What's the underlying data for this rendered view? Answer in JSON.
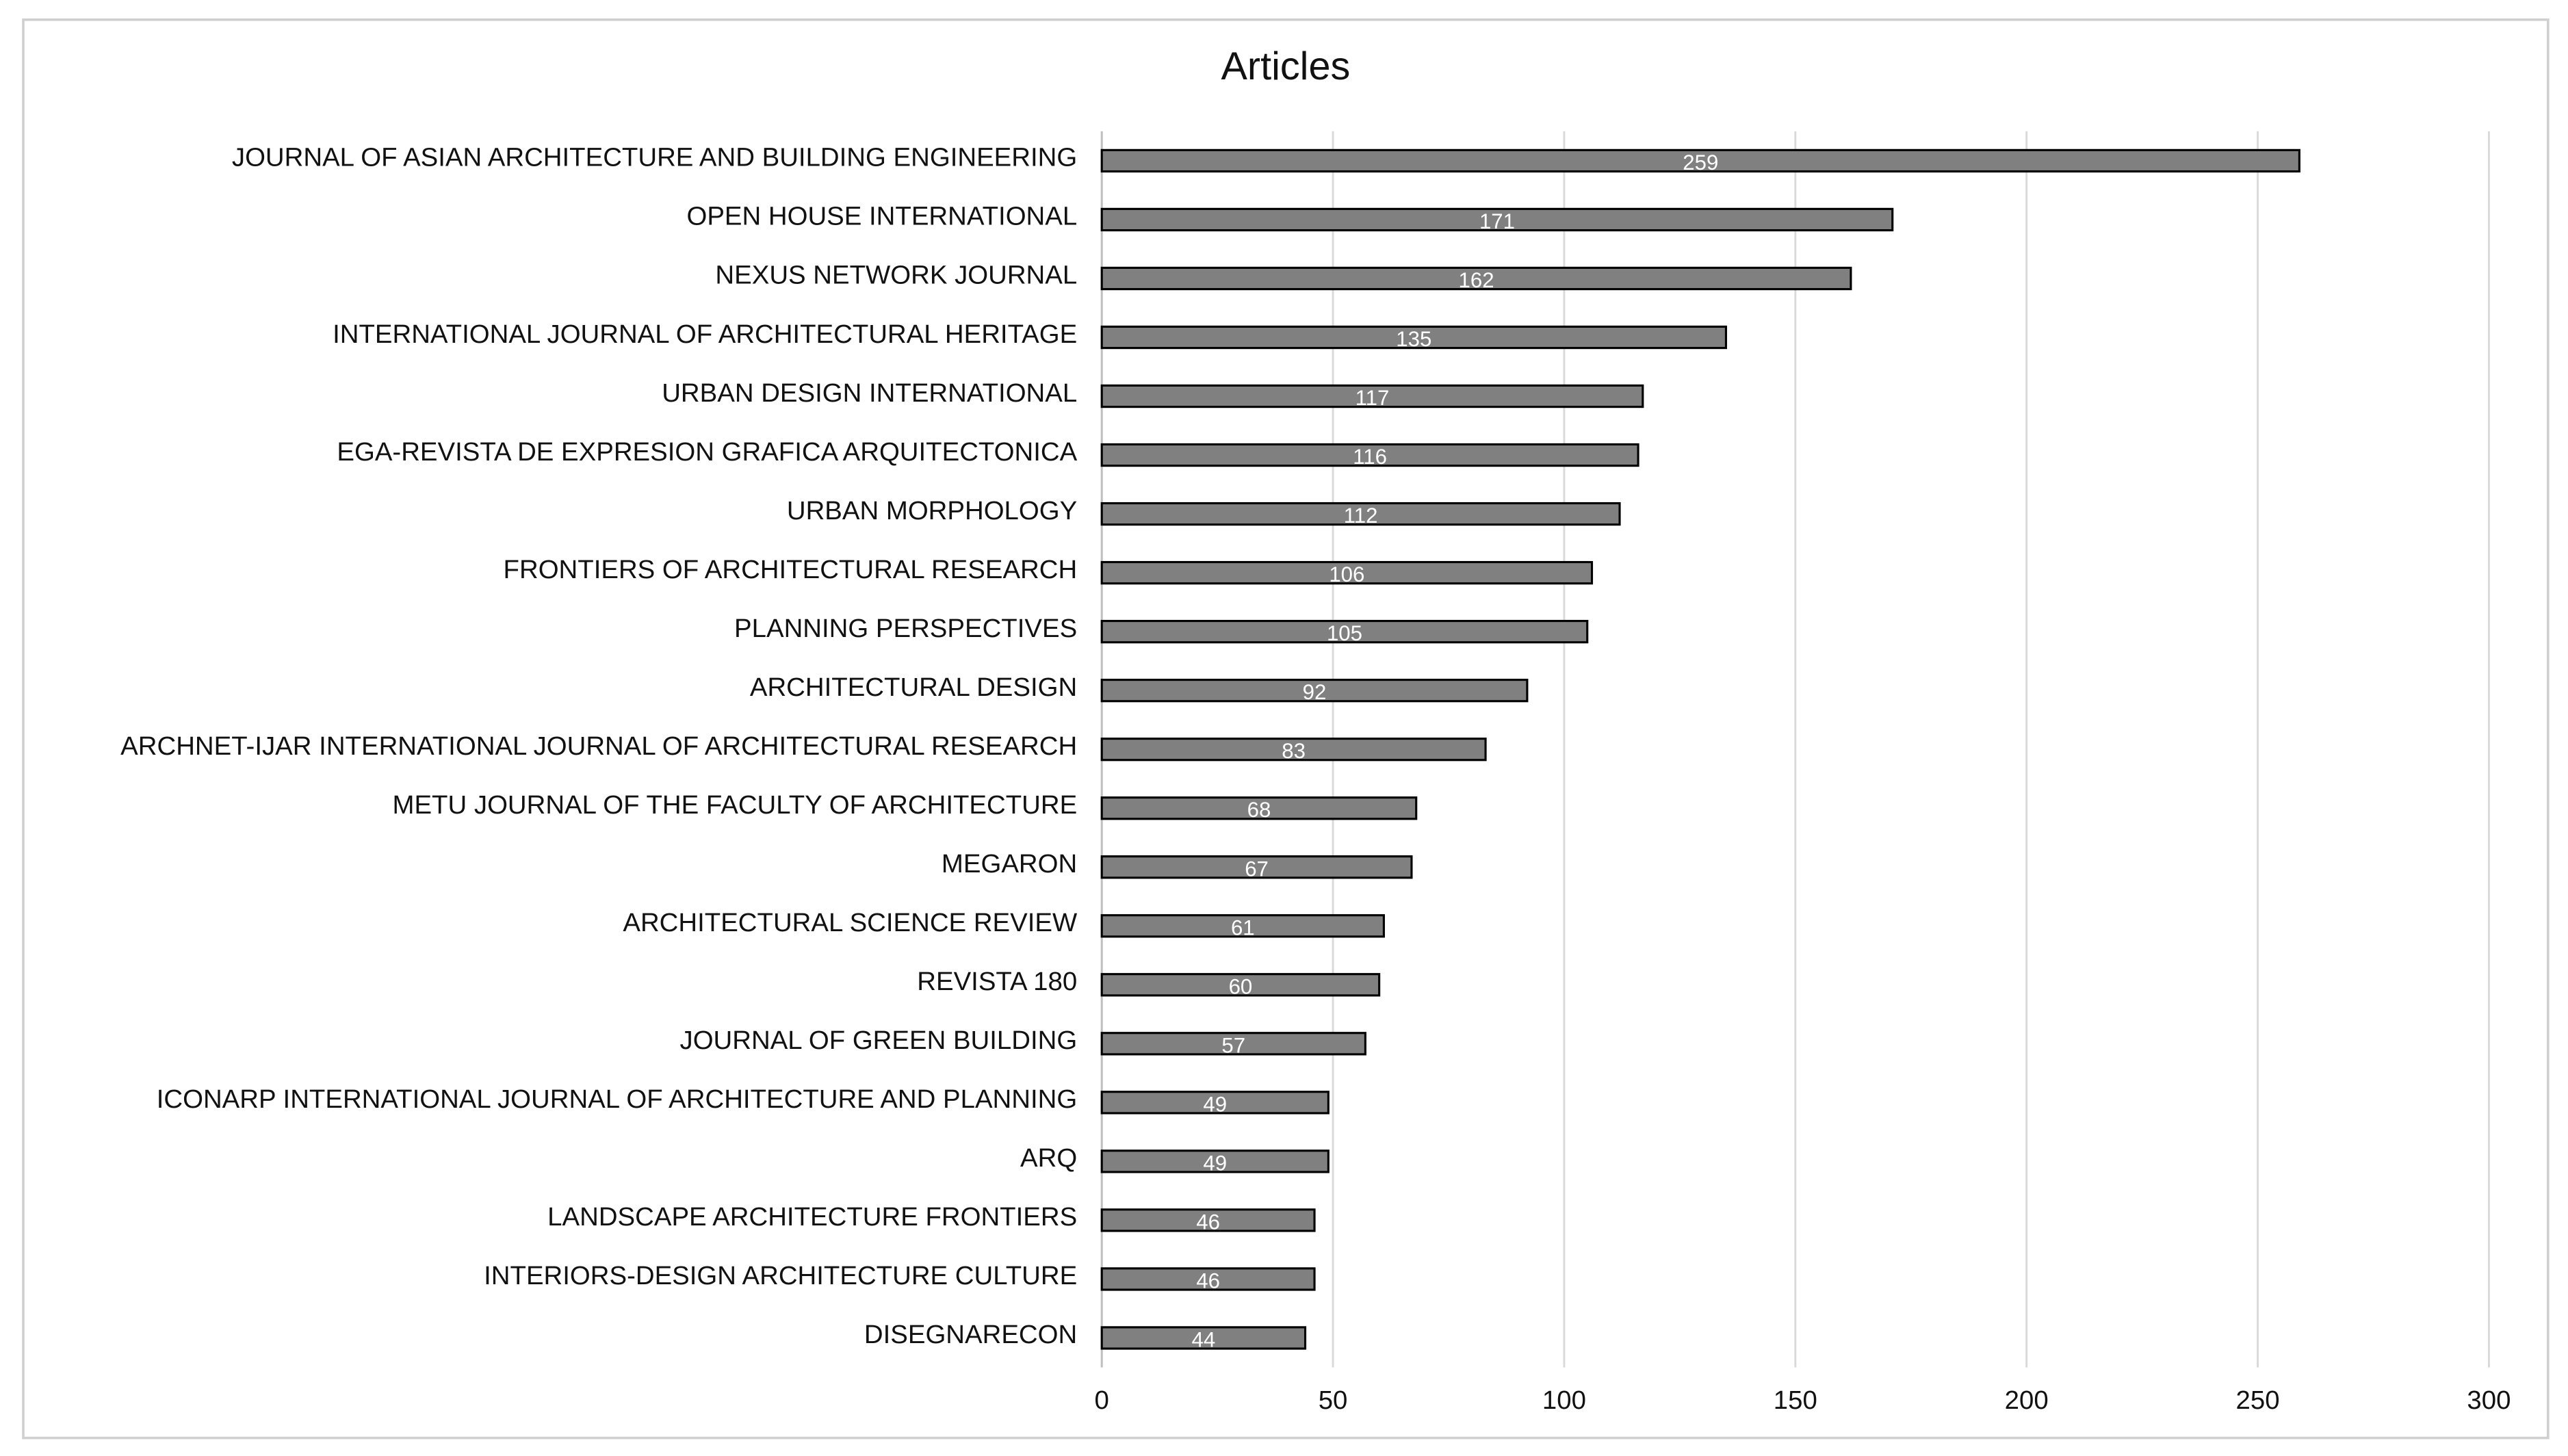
{
  "chart_data": {
    "type": "bar",
    "orientation": "horizontal",
    "title": "Articles",
    "categories": [
      "JOURNAL OF ASIAN ARCHITECTURE AND BUILDING ENGINEERING",
      "OPEN HOUSE INTERNATIONAL",
      "NEXUS NETWORK JOURNAL",
      "INTERNATIONAL JOURNAL OF ARCHITECTURAL HERITAGE",
      "URBAN DESIGN INTERNATIONAL",
      "EGA-REVISTA DE EXPRESION GRAFICA ARQUITECTONICA",
      "URBAN MORPHOLOGY",
      "FRONTIERS OF ARCHITECTURAL RESEARCH",
      "PLANNING PERSPECTIVES",
      "ARCHITECTURAL DESIGN",
      "ARCHNET-IJAR INTERNATIONAL JOURNAL OF ARCHITECTURAL RESEARCH",
      "METU JOURNAL OF THE FACULTY OF ARCHITECTURE",
      "MEGARON",
      "ARCHITECTURAL SCIENCE REVIEW",
      "REVISTA 180",
      "JOURNAL OF GREEN BUILDING",
      "ICONARP INTERNATIONAL JOURNAL OF ARCHITECTURE AND PLANNING",
      "ARQ",
      "LANDSCAPE ARCHITECTURE FRONTIERS",
      "INTERIORS-DESIGN ARCHITECTURE CULTURE",
      "DISEGNARECON"
    ],
    "values": [
      259,
      171,
      162,
      135,
      117,
      116,
      112,
      106,
      105,
      92,
      83,
      68,
      67,
      61,
      60,
      57,
      49,
      49,
      46,
      46,
      44
    ],
    "color": "#808080",
    "xlim": [
      0,
      300
    ],
    "xticks": [
      0,
      50,
      100,
      150,
      200,
      250,
      300
    ],
    "grid": true
  }
}
